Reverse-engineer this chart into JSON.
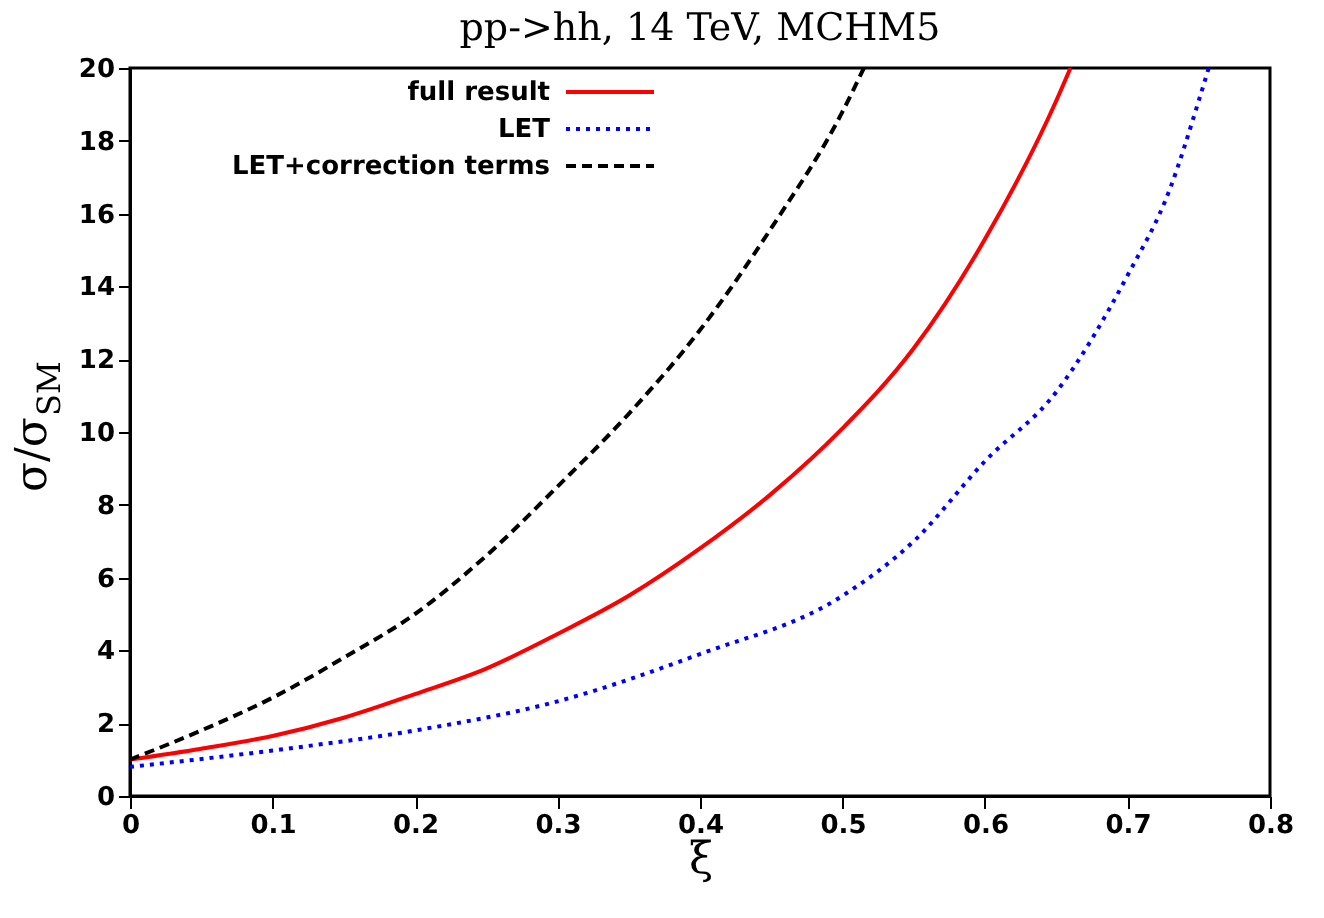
{
  "chart_data": {
    "type": "line",
    "title": "pp->hh, 14 TeV, MCHM5",
    "xlabel": "ξ",
    "ylabel": "σ/σ$_{SM}$",
    "xlim": [
      0,
      0.8
    ],
    "ylim": [
      0,
      20
    ],
    "xticks": [
      0,
      0.1,
      0.2,
      0.3,
      0.4,
      0.5,
      0.6,
      0.7,
      0.8
    ],
    "yticks": [
      0,
      2,
      4,
      6,
      8,
      10,
      12,
      14,
      16,
      18,
      20
    ],
    "grid": false,
    "legend": "top left",
    "marker": "none",
    "series": [
      {
        "name": "full result",
        "color": "#ff0000",
        "line_style": "solid",
        "x": [
          0,
          0.05,
          0.1,
          0.15,
          0.2,
          0.25,
          0.3,
          0.35,
          0.4,
          0.45,
          0.5,
          0.55,
          0.6,
          0.65,
          0.66
        ],
        "values": [
          1.0,
          1.3,
          1.65,
          2.15,
          2.8,
          3.5,
          4.45,
          5.5,
          6.8,
          8.3,
          10.1,
          12.3,
          15.3,
          19.1,
          20
        ]
      },
      {
        "name": "LET",
        "color": "#0000ff",
        "line_style": "dotted",
        "x": [
          0,
          0.1,
          0.2,
          0.3,
          0.4,
          0.5,
          0.55,
          0.6,
          0.65,
          0.7,
          0.73,
          0.75,
          0.757
        ],
        "values": [
          0.8,
          1.25,
          1.8,
          2.6,
          3.9,
          5.5,
          7.0,
          9.2,
          11.1,
          14.3,
          16.7,
          19.1,
          20
        ]
      },
      {
        "name": "LET+correction terms",
        "color": "#000000",
        "line_style": "dashed",
        "x": [
          0,
          0.05,
          0.1,
          0.15,
          0.2,
          0.25,
          0.3,
          0.35,
          0.4,
          0.45,
          0.5,
          0.515
        ],
        "values": [
          1.0,
          1.8,
          2.7,
          3.8,
          5.0,
          6.6,
          8.5,
          10.5,
          12.8,
          15.6,
          18.8,
          20
        ]
      }
    ]
  }
}
